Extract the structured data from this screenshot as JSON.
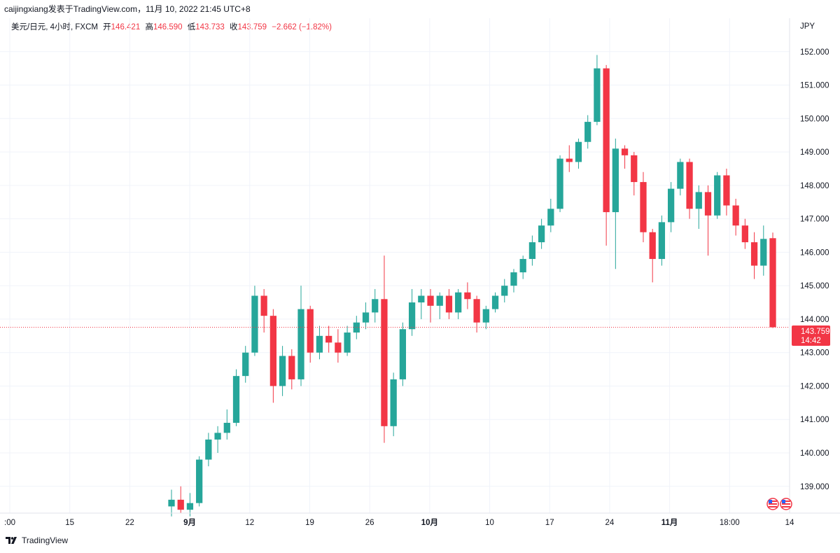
{
  "attribution": "caijingxiang发表于TradingView.com，11月 10, 2022 21:45 UTC+8",
  "legend": {
    "symbol": "美元/日元, 4小时, FXCM",
    "open_label": "开",
    "open": "146.421",
    "high_label": "高",
    "high": "146.590",
    "low_label": "低",
    "low": "143.733",
    "close_label": "收",
    "close": "143.759",
    "change": "−2.662 (−1.82%)"
  },
  "footer": {
    "brand": "TradingView"
  },
  "colors": {
    "up": "#26a69a",
    "down": "#f23645",
    "grid": "#f0f3fa",
    "axis_text": "#131722",
    "last_price_line": "#f23645"
  },
  "chart_data": {
    "type": "candlestick",
    "title": "",
    "currency": "JPY",
    "timeframe": "4小时",
    "ylim": [
      138.2,
      153.0
    ],
    "y_ticks": [
      "139.000",
      "140.000",
      "141.000",
      "142.000",
      "143.000",
      "144.000",
      "145.000",
      "146.000",
      "147.000",
      "148.000",
      "149.000",
      "150.000",
      "151.000",
      "152.000"
    ],
    "x_ticks": [
      ":00",
      "15",
      "22",
      "9月",
      "12",
      "19",
      "26",
      "10月",
      "10",
      "17",
      "24",
      "11月",
      "18:00",
      "14"
    ],
    "x_ticks_bold": [
      "9月",
      "10月",
      "11月"
    ],
    "last_price": {
      "value": "143.759",
      "countdown": "14:42"
    },
    "grid": true,
    "series": [
      {
        "t": "8月31日",
        "o": 138.4,
        "h": 138.9,
        "l": 138.1,
        "c": 138.6
      },
      {
        "t": "9月1日",
        "o": 138.6,
        "h": 139.0,
        "l": 138.2,
        "c": 138.3
      },
      {
        "t": "9月2日",
        "o": 138.3,
        "h": 138.8,
        "l": 138.1,
        "c": 138.5
      },
      {
        "t": "9月5日",
        "o": 138.5,
        "h": 139.9,
        "l": 138.4,
        "c": 139.8
      },
      {
        "t": "9月6日",
        "o": 139.8,
        "h": 140.6,
        "l": 139.6,
        "c": 140.4
      },
      {
        "t": "9月7日",
        "o": 140.4,
        "h": 140.8,
        "l": 140.0,
        "c": 140.6
      },
      {
        "t": "9月8日",
        "o": 140.6,
        "h": 141.3,
        "l": 140.4,
        "c": 140.9
      },
      {
        "t": "9月9日",
        "o": 140.9,
        "h": 142.5,
        "l": 140.8,
        "c": 142.3
      },
      {
        "t": "9月10日",
        "o": 142.3,
        "h": 143.2,
        "l": 142.1,
        "c": 143.0
      },
      {
        "t": "9月11日",
        "o": 143.0,
        "h": 145.0,
        "l": 142.9,
        "c": 144.7
      },
      {
        "t": "9月12日",
        "o": 144.7,
        "h": 144.9,
        "l": 143.6,
        "c": 144.1
      },
      {
        "t": "9月13日",
        "o": 144.1,
        "h": 144.3,
        "l": 141.5,
        "c": 142.0
      },
      {
        "t": "9月14日",
        "o": 142.0,
        "h": 143.2,
        "l": 141.7,
        "c": 142.9
      },
      {
        "t": "9月15日",
        "o": 142.9,
        "h": 143.1,
        "l": 141.9,
        "c": 142.2
      },
      {
        "t": "9月16日",
        "o": 142.2,
        "h": 145.0,
        "l": 142.0,
        "c": 144.3
      },
      {
        "t": "9月17日",
        "o": 144.3,
        "h": 144.4,
        "l": 142.7,
        "c": 143.0
      },
      {
        "t": "9月19日",
        "o": 143.0,
        "h": 143.8,
        "l": 142.8,
        "c": 143.5
      },
      {
        "t": "9月20日",
        "o": 143.5,
        "h": 143.8,
        "l": 143.0,
        "c": 143.3
      },
      {
        "t": "9月21日",
        "o": 143.3,
        "h": 143.7,
        "l": 142.7,
        "c": 143.0
      },
      {
        "t": "9月22日",
        "o": 143.0,
        "h": 143.8,
        "l": 142.9,
        "c": 143.6
      },
      {
        "t": "9月23日",
        "o": 143.6,
        "h": 144.1,
        "l": 143.4,
        "c": 143.9
      },
      {
        "t": "9月24日",
        "o": 143.9,
        "h": 144.5,
        "l": 143.7,
        "c": 144.2
      },
      {
        "t": "9月25日",
        "o": 144.2,
        "h": 144.9,
        "l": 143.9,
        "c": 144.6
      },
      {
        "t": "9月26日",
        "o": 144.6,
        "h": 145.9,
        "l": 140.3,
        "c": 140.8
      },
      {
        "t": "9月27日",
        "o": 140.8,
        "h": 142.4,
        "l": 140.5,
        "c": 142.2
      },
      {
        "t": "9月28日",
        "o": 142.2,
        "h": 143.9,
        "l": 142.0,
        "c": 143.7
      },
      {
        "t": "9月29日",
        "o": 143.7,
        "h": 144.9,
        "l": 143.5,
        "c": 144.5
      },
      {
        "t": "9月30日",
        "o": 144.5,
        "h": 144.9,
        "l": 144.0,
        "c": 144.7
      },
      {
        "t": "10月1日",
        "o": 144.7,
        "h": 144.9,
        "l": 143.9,
        "c": 144.4
      },
      {
        "t": "10月3日",
        "o": 144.4,
        "h": 144.8,
        "l": 144.0,
        "c": 144.7
      },
      {
        "t": "10月4日",
        "o": 144.7,
        "h": 144.9,
        "l": 144.0,
        "c": 144.2
      },
      {
        "t": "10月5日",
        "o": 144.2,
        "h": 144.9,
        "l": 144.0,
        "c": 144.8
      },
      {
        "t": "10月6日",
        "o": 144.8,
        "h": 145.1,
        "l": 144.3,
        "c": 144.6
      },
      {
        "t": "10月7日",
        "o": 144.6,
        "h": 144.7,
        "l": 143.6,
        "c": 143.9
      },
      {
        "t": "10月8日",
        "o": 143.9,
        "h": 144.4,
        "l": 143.7,
        "c": 144.3
      },
      {
        "t": "10月10日",
        "o": 144.3,
        "h": 144.8,
        "l": 144.2,
        "c": 144.7
      },
      {
        "t": "10月11日",
        "o": 144.7,
        "h": 145.2,
        "l": 144.5,
        "c": 145.0
      },
      {
        "t": "10月12日",
        "o": 145.0,
        "h": 145.5,
        "l": 144.8,
        "c": 145.4
      },
      {
        "t": "10月13日",
        "o": 145.4,
        "h": 145.9,
        "l": 145.2,
        "c": 145.8
      },
      {
        "t": "10月14日",
        "o": 145.8,
        "h": 146.5,
        "l": 145.6,
        "c": 146.3
      },
      {
        "t": "10月15日",
        "o": 146.3,
        "h": 147.0,
        "l": 146.1,
        "c": 146.8
      },
      {
        "t": "10月16日",
        "o": 146.8,
        "h": 147.6,
        "l": 146.6,
        "c": 147.3
      },
      {
        "t": "10月17日",
        "o": 147.3,
        "h": 148.9,
        "l": 147.2,
        "c": 148.8
      },
      {
        "t": "10月18日",
        "o": 148.8,
        "h": 149.2,
        "l": 148.4,
        "c": 148.7
      },
      {
        "t": "10月19日",
        "o": 148.7,
        "h": 149.4,
        "l": 148.5,
        "c": 149.3
      },
      {
        "t": "10月20日",
        "o": 149.3,
        "h": 150.1,
        "l": 149.1,
        "c": 149.9
      },
      {
        "t": "10月21日",
        "o": 149.9,
        "h": 151.9,
        "l": 149.8,
        "c": 151.5
      },
      {
        "t": "10月22日",
        "o": 151.5,
        "h": 151.6,
        "l": 146.2,
        "c": 147.2
      },
      {
        "t": "10月23日",
        "o": 147.2,
        "h": 149.4,
        "l": 145.5,
        "c": 149.1
      },
      {
        "t": "10月24日",
        "o": 149.1,
        "h": 149.2,
        "l": 148.5,
        "c": 148.9
      },
      {
        "t": "10月25日",
        "o": 148.9,
        "h": 149.0,
        "l": 147.7,
        "c": 148.1
      },
      {
        "t": "10月26日",
        "o": 148.1,
        "h": 148.4,
        "l": 146.3,
        "c": 146.6
      },
      {
        "t": "10月27日",
        "o": 146.6,
        "h": 146.7,
        "l": 145.1,
        "c": 145.8
      },
      {
        "t": "10月28日",
        "o": 145.8,
        "h": 147.1,
        "l": 145.6,
        "c": 146.9
      },
      {
        "t": "10月29日",
        "o": 146.9,
        "h": 148.1,
        "l": 146.6,
        "c": 147.9
      },
      {
        "t": "10月31日",
        "o": 147.9,
        "h": 148.8,
        "l": 147.7,
        "c": 148.7
      },
      {
        "t": "11月1日",
        "o": 148.7,
        "h": 148.8,
        "l": 147.0,
        "c": 147.3
      },
      {
        "t": "11月2日",
        "o": 147.3,
        "h": 148.0,
        "l": 146.7,
        "c": 147.8
      },
      {
        "t": "11月3日",
        "o": 147.8,
        "h": 148.0,
        "l": 145.9,
        "c": 147.1
      },
      {
        "t": "11月4日",
        "o": 147.1,
        "h": 148.4,
        "l": 147.0,
        "c": 148.3
      },
      {
        "t": "11月5日",
        "o": 148.3,
        "h": 148.5,
        "l": 147.1,
        "c": 147.4
      },
      {
        "t": "11月6日",
        "o": 147.4,
        "h": 147.6,
        "l": 146.5,
        "c": 146.8
      },
      {
        "t": "11月7日",
        "o": 146.8,
        "h": 147.0,
        "l": 146.1,
        "c": 146.3
      },
      {
        "t": "11月8日",
        "o": 146.3,
        "h": 146.6,
        "l": 145.2,
        "c": 145.6
      },
      {
        "t": "11月9日",
        "o": 145.6,
        "h": 146.8,
        "l": 145.3,
        "c": 146.4
      },
      {
        "t": "11月10日",
        "o": 146.421,
        "h": 146.59,
        "l": 143.733,
        "c": 143.759
      }
    ]
  }
}
